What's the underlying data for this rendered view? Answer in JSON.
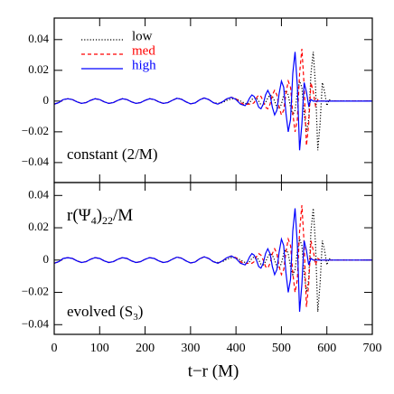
{
  "chart_data": [
    {
      "type": "line",
      "legend": "upper left",
      "annotation": "constant (2/M)",
      "xlim": [
        0,
        700
      ],
      "xticks": [
        0,
        100,
        200,
        300,
        400,
        500,
        600,
        700
      ],
      "ylim": [
        -0.053,
        0.054
      ],
      "yticks": [
        {
          "value": -0.04,
          "label": "−0.04"
        },
        {
          "value": -0.02,
          "label": "−0.02"
        },
        0,
        0.02,
        0.04
      ],
      "x": [
        0,
        10,
        20,
        30,
        40,
        50,
        60,
        70,
        80,
        90,
        100,
        110,
        120,
        130,
        140,
        150,
        160,
        170,
        180,
        190,
        200,
        210,
        220,
        230,
        240,
        250,
        260,
        270,
        280,
        290,
        300,
        310,
        320,
        330,
        340,
        350,
        360,
        370,
        380,
        390,
        400,
        410,
        420,
        425,
        430,
        435,
        440,
        445,
        450,
        455,
        460,
        465,
        470,
        475,
        480,
        485,
        490,
        495,
        500,
        505,
        510,
        515,
        520,
        525,
        530,
        535,
        540,
        545,
        550,
        555,
        560,
        565,
        570,
        575,
        580,
        585,
        590,
        595,
        600,
        605,
        610,
        615,
        620,
        630,
        640,
        650,
        660,
        670,
        680,
        690,
        700
      ],
      "series": [
        {
          "name": "low",
          "color": "#000000",
          "linestyle": "dotted",
          "values": [
            -0.002,
            -0.001,
            0.001,
            0.0015,
            0.001,
            -0.0005,
            -0.0015,
            -0.001,
            0.0005,
            0.0015,
            0.001,
            -0.0005,
            -0.0015,
            -0.001,
            0.0005,
            0.0015,
            0.001,
            -0.0005,
            -0.0015,
            -0.001,
            0.0005,
            0.0015,
            0.001,
            -0.0005,
            -0.0015,
            -0.001,
            0.0005,
            0.0018,
            0.0012,
            -0.0005,
            -0.0018,
            -0.0012,
            0.0008,
            0.002,
            0.001,
            -0.001,
            -0.0015,
            -0.001,
            0.0005,
            0.0015,
            0.0015,
            0,
            -0.0015,
            -0.002,
            -0.001,
            0.001,
            0.002,
            0.002,
            0,
            -0.0025,
            -0.003,
            -0.001,
            0.002,
            0.004,
            0.003,
            0,
            -0.004,
            -0.005,
            -0.002,
            0.004,
            0.007,
            0.004,
            -0.004,
            -0.009,
            -0.006,
            0.005,
            0.013,
            0.009,
            -0.008,
            -0.02,
            -0.012,
            0.018,
            0.032,
            0.01,
            -0.032,
            -0.015,
            0.012,
            0.006,
            -0.003,
            0.001,
            0,
            0,
            0,
            0,
            0,
            0,
            0,
            0,
            0,
            0,
            0
          ]
        },
        {
          "name": "med",
          "color": "#ff0000",
          "linestyle": "dashed",
          "values": [
            -0.002,
            -0.001,
            0.001,
            0.0015,
            0.001,
            -0.0005,
            -0.0015,
            -0.001,
            0.0005,
            0.0015,
            0.001,
            -0.0005,
            -0.0015,
            -0.001,
            0.0005,
            0.0015,
            0.001,
            -0.0005,
            -0.0015,
            -0.001,
            0.0005,
            0.0015,
            0.001,
            -0.0005,
            -0.0015,
            -0.001,
            0.0005,
            0.0018,
            0.0012,
            -0.0005,
            -0.0018,
            -0.0012,
            0.0008,
            0.002,
            0.001,
            -0.001,
            -0.002,
            -0.0005,
            0.0015,
            0.0025,
            0.0015,
            -0.001,
            -0.0025,
            -0.002,
            -0.002,
            -0.002,
            -0.001,
            0.002,
            0.004,
            0.003,
            0,
            -0.004,
            -0.005,
            -0.002,
            0.004,
            0.007,
            0.004,
            -0.004,
            -0.009,
            -0.006,
            0.005,
            0.013,
            0.009,
            -0.008,
            -0.02,
            -0.012,
            0.018,
            0.034,
            0.01,
            -0.029,
            -0.015,
            0.012,
            0.006,
            -0.003,
            0.001,
            0,
            0,
            0,
            0,
            0,
            0,
            0,
            0,
            0,
            0,
            0,
            0,
            0,
            0,
            0,
            0
          ]
        },
        {
          "name": "high",
          "color": "#0000ff",
          "linestyle": "solid",
          "values": [
            -0.002,
            -0.001,
            0.001,
            0.0015,
            0.001,
            -0.0005,
            -0.0015,
            -0.001,
            0.0005,
            0.0015,
            0.001,
            -0.0005,
            -0.0015,
            -0.001,
            0.0005,
            0.0015,
            0.001,
            -0.0005,
            -0.0015,
            -0.001,
            0.0005,
            0.0015,
            0.001,
            -0.0005,
            -0.0015,
            -0.001,
            0.0005,
            0.0018,
            0.0012,
            -0.0005,
            -0.0018,
            -0.0012,
            0.0008,
            0.002,
            0.001,
            -0.001,
            -0.002,
            -0.0005,
            0.0015,
            0.0025,
            0.001,
            -0.002,
            -0.003,
            -0.001,
            0.002,
            0.004,
            0.003,
            0,
            -0.004,
            -0.005,
            -0.002,
            0.004,
            0.007,
            0.004,
            -0.004,
            -0.009,
            -0.006,
            0.005,
            0.013,
            0.009,
            -0.008,
            -0.02,
            -0.012,
            0.018,
            0.032,
            0.01,
            -0.032,
            -0.015,
            0.012,
            0.006,
            -0.003,
            0.001,
            0,
            0,
            0,
            0,
            0,
            0,
            0,
            0,
            0,
            0,
            0,
            0,
            0,
            0,
            0,
            0,
            0,
            0,
            0
          ]
        }
      ]
    },
    {
      "type": "line",
      "title_parts": [
        "r(Ψ",
        "4",
        ")",
        "22",
        "/M"
      ],
      "annotation_parts": [
        "evolved (S",
        "3",
        ")"
      ],
      "xlabel": "t−r (M)",
      "xlim": [
        0,
        700
      ],
      "xticks": [
        0,
        100,
        200,
        300,
        400,
        500,
        600,
        700
      ],
      "ylim": [
        -0.046,
        0.048
      ],
      "yticks": [
        {
          "value": -0.04,
          "label": "−0.04"
        },
        {
          "value": -0.02,
          "label": "−0.02"
        },
        0,
        0.02,
        0.04
      ],
      "x": [
        0,
        10,
        20,
        30,
        40,
        50,
        60,
        70,
        80,
        90,
        100,
        110,
        120,
        130,
        140,
        150,
        160,
        170,
        180,
        190,
        200,
        210,
        220,
        230,
        240,
        250,
        260,
        270,
        280,
        290,
        300,
        310,
        320,
        330,
        340,
        350,
        360,
        370,
        380,
        390,
        400,
        410,
        420,
        425,
        430,
        435,
        440,
        445,
        450,
        455,
        460,
        465,
        470,
        475,
        480,
        485,
        490,
        495,
        500,
        505,
        510,
        515,
        520,
        525,
        530,
        535,
        540,
        545,
        550,
        555,
        560,
        565,
        570,
        575,
        580,
        585,
        590,
        595,
        600,
        605,
        610,
        615,
        620,
        630,
        640,
        650,
        660,
        670,
        680,
        690,
        700
      ],
      "series": [
        {
          "color": "#000000",
          "linestyle": "dotted",
          "values": [
            -0.002,
            -0.001,
            0.001,
            0.0015,
            0.001,
            -0.0005,
            -0.0015,
            -0.001,
            0.0005,
            0.0015,
            0.001,
            -0.0005,
            -0.0015,
            -0.001,
            0.0005,
            0.0015,
            0.001,
            -0.0005,
            -0.0015,
            -0.001,
            0.0005,
            0.0015,
            0.001,
            -0.0005,
            -0.0015,
            -0.001,
            0.0005,
            0.0018,
            0.0012,
            -0.0005,
            -0.0018,
            -0.0012,
            0.0008,
            0.002,
            0.001,
            -0.001,
            -0.0015,
            -0.001,
            0.0005,
            0.0015,
            0.0015,
            0,
            -0.0015,
            -0.002,
            -0.001,
            0.001,
            0.002,
            0.002,
            0,
            -0.0025,
            -0.003,
            -0.001,
            0.002,
            0.004,
            0.003,
            0,
            -0.004,
            -0.005,
            -0.002,
            0.004,
            0.007,
            0.004,
            -0.004,
            -0.009,
            -0.006,
            0.005,
            0.013,
            0.009,
            -0.008,
            -0.02,
            -0.012,
            0.018,
            0.032,
            0.01,
            -0.032,
            -0.015,
            0.012,
            0.006,
            -0.003,
            0.001,
            0,
            0,
            0,
            0,
            0,
            0,
            0,
            0,
            0,
            0,
            0
          ]
        },
        {
          "color": "#ff0000",
          "linestyle": "dashed",
          "values": [
            -0.002,
            -0.001,
            0.001,
            0.0015,
            0.001,
            -0.0005,
            -0.0015,
            -0.001,
            0.0005,
            0.0015,
            0.001,
            -0.0005,
            -0.0015,
            -0.001,
            0.0005,
            0.0015,
            0.001,
            -0.0005,
            -0.0015,
            -0.001,
            0.0005,
            0.0015,
            0.001,
            -0.0005,
            -0.0015,
            -0.001,
            0.0005,
            0.0018,
            0.0012,
            -0.0005,
            -0.0018,
            -0.0012,
            0.0008,
            0.002,
            0.001,
            -0.001,
            -0.002,
            -0.0005,
            0.0015,
            0.0025,
            0.0015,
            -0.001,
            -0.0025,
            -0.002,
            -0.002,
            -0.002,
            -0.001,
            0.002,
            0.004,
            0.003,
            0,
            -0.004,
            -0.005,
            -0.002,
            0.004,
            0.007,
            0.004,
            -0.004,
            -0.009,
            -0.006,
            0.005,
            0.013,
            0.009,
            -0.008,
            -0.02,
            -0.012,
            0.018,
            0.034,
            0.01,
            -0.029,
            -0.015,
            0.012,
            0.006,
            -0.003,
            0.001,
            0,
            0,
            0,
            0,
            0,
            0,
            0,
            0,
            0,
            0,
            0,
            0,
            0,
            0,
            0,
            0
          ]
        },
        {
          "color": "#0000ff",
          "linestyle": "solid",
          "values": [
            -0.002,
            -0.001,
            0.001,
            0.0015,
            0.001,
            -0.0005,
            -0.0015,
            -0.001,
            0.0005,
            0.0015,
            0.001,
            -0.0005,
            -0.0015,
            -0.001,
            0.0005,
            0.0015,
            0.001,
            -0.0005,
            -0.0015,
            -0.001,
            0.0005,
            0.0015,
            0.001,
            -0.0005,
            -0.0015,
            -0.001,
            0.0005,
            0.0018,
            0.0012,
            -0.0005,
            -0.0018,
            -0.0012,
            0.0008,
            0.002,
            0.001,
            -0.001,
            -0.002,
            -0.0005,
            0.0015,
            0.0025,
            0.001,
            -0.002,
            -0.003,
            -0.001,
            0.002,
            0.004,
            0.003,
            0,
            -0.004,
            -0.005,
            -0.002,
            0.004,
            0.007,
            0.004,
            -0.004,
            -0.009,
            -0.006,
            0.005,
            0.013,
            0.009,
            -0.008,
            -0.02,
            -0.012,
            0.018,
            0.032,
            0.01,
            -0.032,
            -0.015,
            0.012,
            0.006,
            -0.003,
            0.001,
            0,
            0,
            0,
            0,
            0,
            0,
            0,
            0,
            0,
            0,
            0,
            0,
            0,
            0,
            0,
            0,
            0,
            0,
            0
          ]
        }
      ]
    }
  ]
}
